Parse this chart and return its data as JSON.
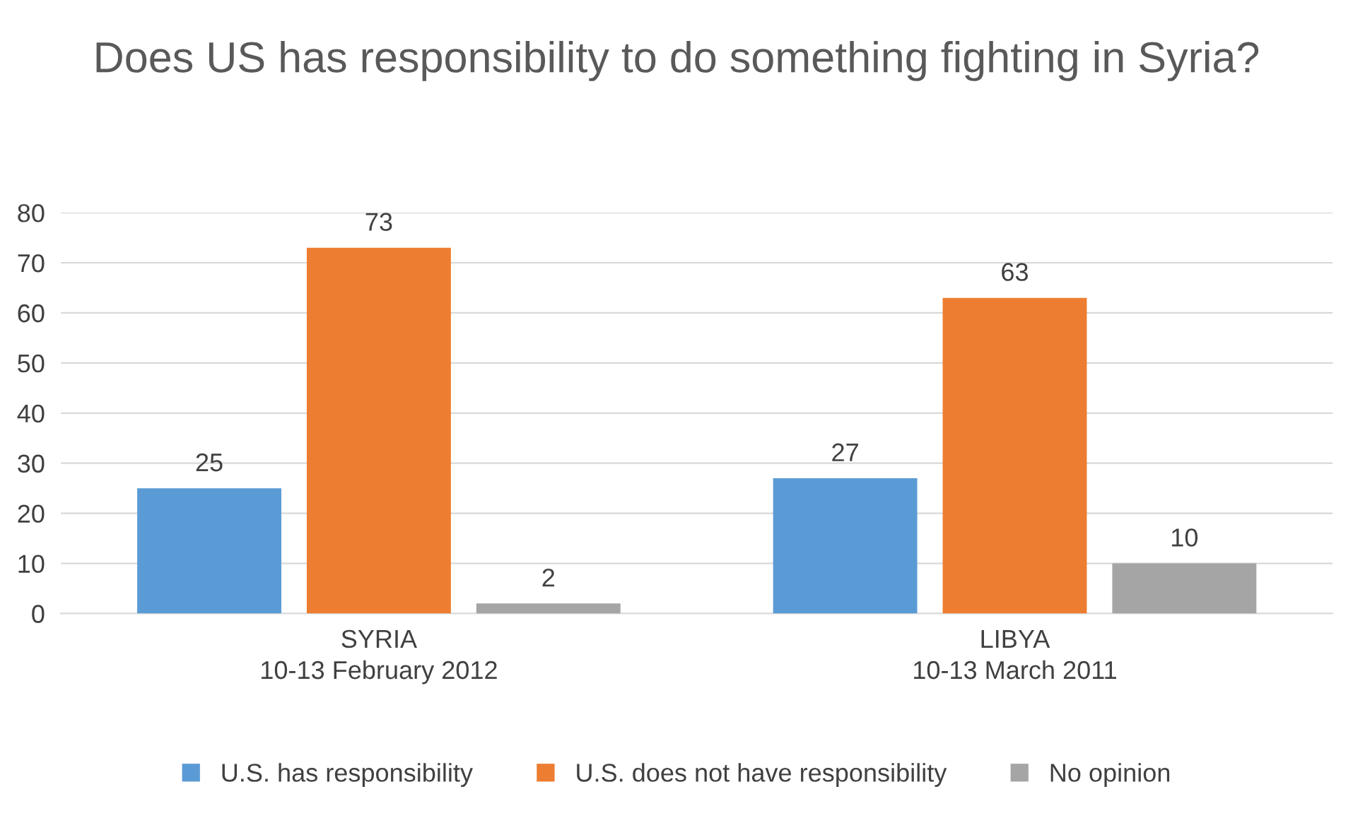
{
  "chart_data": {
    "type": "bar",
    "title": "Does US has responsibility to do something fighting in Syria?",
    "categories": [
      "SYRIA\n10-13 February 2012",
      "LIBYA\n10-13 March 2011"
    ],
    "series": [
      {
        "name": "U.S. has responsibility",
        "color": "#5b9bd5",
        "values": [
          25,
          27
        ]
      },
      {
        "name": "U.S. does not have responsibility",
        "color": "#ed7d31",
        "values": [
          73,
          63
        ]
      },
      {
        "name": "No opinion",
        "color": "#a5a5a5",
        "values": [
          2,
          10
        ]
      }
    ],
    "ylim": [
      0,
      80
    ],
    "yticks": [
      0,
      10,
      20,
      30,
      40,
      50,
      60,
      70,
      80
    ],
    "grid": "y",
    "legend": "bottom",
    "data_labels": true
  }
}
